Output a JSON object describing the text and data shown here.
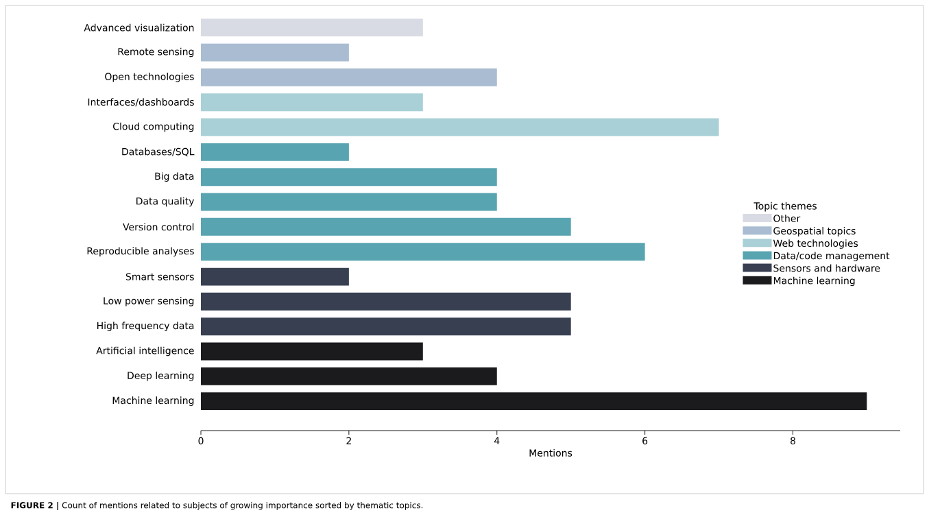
{
  "chart_data": {
    "type": "bar",
    "orientation": "horizontal",
    "xlabel": "Mentions",
    "legend_title": "Topic themes",
    "legend": "right",
    "grid": false,
    "categories": [
      "Advanced visualization",
      "Remote sensing",
      "Open technologies",
      "Interfaces/dashboards",
      "Cloud computing",
      "Databases/SQL",
      "Big data",
      "Data quality",
      "Version control",
      "Reproducible analyses",
      "Smart sensors",
      "Low power sensing",
      "High frequency data",
      "Artificial intelligence",
      "Deep learning",
      "Machine learning"
    ],
    "series": [
      {
        "name": "Other",
        "color": "#d8dbe3",
        "values": [
          3,
          null,
          null,
          null,
          null,
          null,
          null,
          null,
          null,
          null,
          null,
          null,
          null,
          null,
          null,
          null
        ]
      },
      {
        "name": "Geospatial topics",
        "color": "#a9bcd2",
        "values": [
          null,
          2,
          4,
          null,
          null,
          null,
          null,
          null,
          null,
          null,
          null,
          null,
          null,
          null,
          null,
          null
        ]
      },
      {
        "name": "Web technologies",
        "color": "#a9d0d6",
        "values": [
          null,
          null,
          null,
          3,
          7,
          null,
          null,
          null,
          null,
          null,
          null,
          null,
          null,
          null,
          null,
          null
        ]
      },
      {
        "name": "Data/code management",
        "color": "#58a4b0",
        "values": [
          null,
          null,
          null,
          null,
          null,
          2,
          4,
          4,
          5,
          6,
          null,
          null,
          null,
          null,
          null,
          null
        ]
      },
      {
        "name": "Sensors and hardware",
        "color": "#373f51",
        "values": [
          null,
          null,
          null,
          null,
          null,
          null,
          null,
          null,
          null,
          null,
          2,
          5,
          5,
          null,
          null,
          null
        ]
      },
      {
        "name": "Machine learning",
        "color": "#1b1b1e",
        "values": [
          null,
          null,
          null,
          null,
          null,
          null,
          null,
          null,
          null,
          null,
          null,
          null,
          null,
          3,
          4,
          9
        ]
      }
    ],
    "xlim": [
      0,
      9.45
    ],
    "xticks": [
      0,
      2,
      4,
      6,
      8
    ],
    "annotations": [
      "**FIGURE 2 |** Count of mentions related to subjects of growing importance sorted by thematic topics."
    ]
  }
}
